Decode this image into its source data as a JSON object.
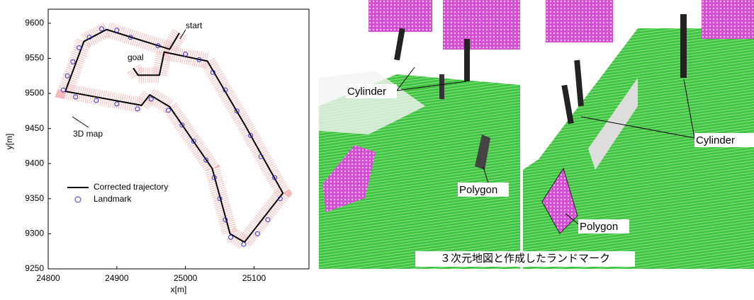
{
  "chart_data": {
    "type": "line",
    "xlabel": "x[m]",
    "ylabel": "y[m]",
    "xlim": [
      24800,
      25180
    ],
    "ylim": [
      9250,
      9620
    ],
    "xticks": [
      24800,
      24900,
      25000,
      25100
    ],
    "yticks": [
      9250,
      9300,
      9350,
      9400,
      9450,
      9500,
      9550,
      9600
    ],
    "series": [
      {
        "name": "Corrected trajectory",
        "color": "#000000",
        "x": [
          24991,
          24977,
          24885,
          24852,
          24825,
          24936,
          24948,
          24977,
          25039,
          25065,
          25086,
          25142,
          25086,
          25032,
          24969,
          24962,
          24931,
          24924
        ],
        "values": [
          9586,
          9563,
          9591,
          9574,
          9503,
          9483,
          9498,
          9481,
          9393,
          9300,
          9288,
          9358,
          9456,
          9546,
          9559,
          9526,
          9526,
          9536
        ]
      },
      {
        "name": "Landmark",
        "color": "#3333cc",
        "x": [
          24878,
          24860,
          24845,
          24836,
          24828,
          24822,
          24840,
          24870,
          24900,
          24930,
          24950,
          24975,
          24995,
          25012,
          25030,
          25042,
          25050,
          25058,
          25066,
          25085,
          25105,
          25120,
          25138,
          25130,
          25110,
          25095,
          25075,
          25058,
          25040,
          25020,
          25000,
          24960,
          24920,
          24900
        ],
        "values": [
          9592,
          9580,
          9565,
          9545,
          9525,
          9505,
          9495,
          9490,
          9485,
          9478,
          9492,
          9476,
          9455,
          9432,
          9405,
          9380,
          9350,
          9320,
          9295,
          9285,
          9300,
          9320,
          9350,
          9380,
          9410,
          9440,
          9475,
          9505,
          9530,
          9548,
          9556,
          9568,
          9580,
          9590
        ]
      }
    ],
    "annotations": {
      "start": "start",
      "goal": "goal",
      "map": "3D map"
    }
  },
  "images": {
    "cylinder_left": "Cylinder",
    "polygon_left": "Polygon",
    "cylinder_right": "Cylinder",
    "polygon_right": "Polygon",
    "caption": "３次元地図と作成したランドマーク"
  }
}
